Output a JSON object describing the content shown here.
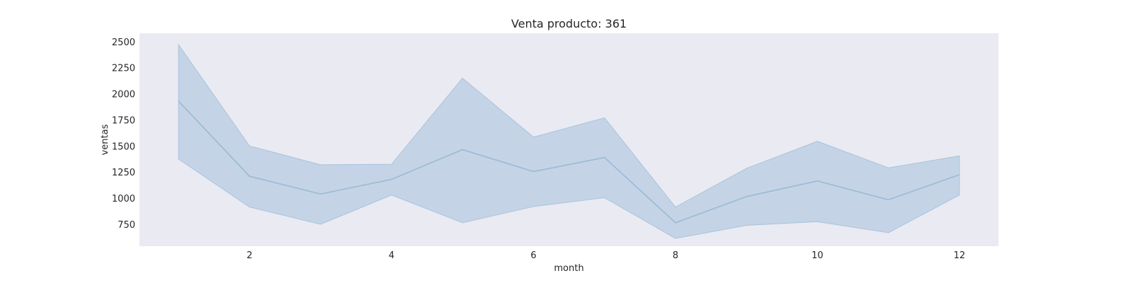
{
  "chart_data": {
    "type": "line",
    "title": "Venta producto: 361",
    "xlabel": "month",
    "ylabel": "ventas",
    "xlim": [
      0.45,
      12.55
    ],
    "ylim": [
      540,
      2580
    ],
    "xticks": [
      2,
      4,
      6,
      8,
      10,
      12
    ],
    "yticks": [
      750,
      1000,
      1250,
      1500,
      1750,
      2000,
      2250,
      2500
    ],
    "grid": false,
    "legend": "none",
    "colors": {
      "background": "#eaeaf2",
      "line": "#9ebcd8",
      "band": "#c2d3e5"
    },
    "series": [
      {
        "x": [
          1,
          2,
          3,
          4,
          5,
          6,
          7,
          8,
          9,
          10,
          11,
          12
        ],
        "y": [
          1930,
          1210,
          1040,
          1180,
          1465,
          1255,
          1390,
          765,
          1015,
          1165,
          985,
          1225
        ],
        "lower": [
          1375,
          915,
          750,
          1030,
          765,
          920,
          1005,
          615,
          740,
          775,
          670,
          1030
        ],
        "upper": [
          2470,
          1500,
          1320,
          1325,
          2150,
          1585,
          1770,
          915,
          1285,
          1545,
          1290,
          1405
        ]
      }
    ]
  }
}
